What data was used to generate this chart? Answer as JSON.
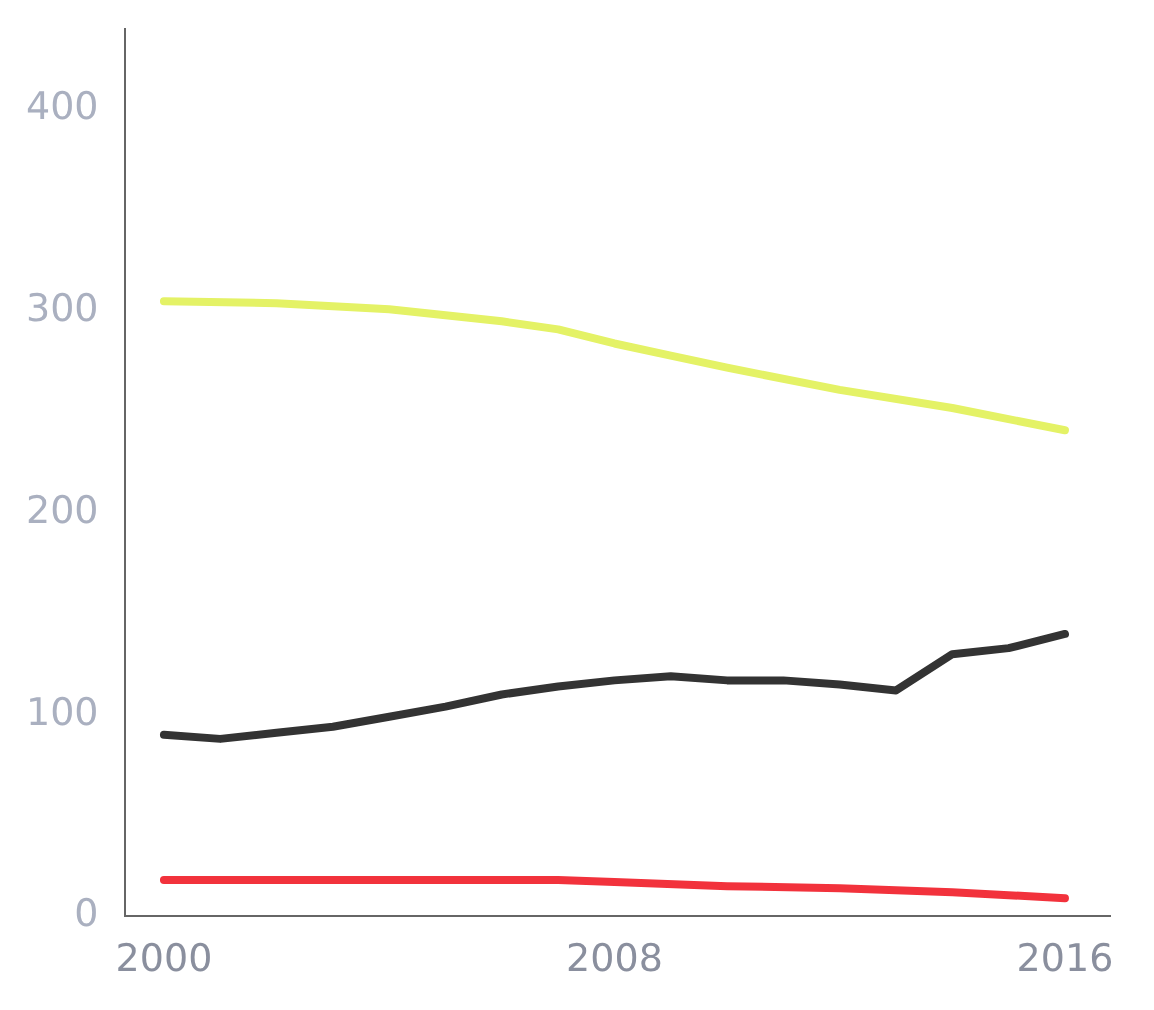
{
  "chart_data": {
    "type": "line",
    "xlim": [
      1999.3,
      2016.8
    ],
    "xticks": [
      2000,
      2008,
      2016
    ],
    "ylim": [
      0,
      440
    ],
    "yticks": [
      0,
      100,
      200,
      300,
      400
    ],
    "grid": false,
    "legend": false,
    "marker": "none",
    "line_style": "solid",
    "series": [
      {
        "color": "#e4f266",
        "x": [
          2000,
          2002,
          2004,
          2006,
          2007,
          2008,
          2009,
          2010,
          2012,
          2014,
          2016
        ],
        "values": [
          305,
          304,
          301,
          295,
          291,
          284,
          278,
          272,
          261,
          252,
          241
        ]
      },
      {
        "color": "#333333",
        "x": [
          2000,
          2001,
          2002,
          2003,
          2004,
          2005,
          2006,
          2007,
          2008,
          2009,
          2010,
          2011,
          2012,
          2013,
          2014,
          2015,
          2016
        ],
        "values": [
          90,
          88,
          91,
          94,
          99,
          104,
          110,
          114,
          117,
          119,
          117,
          117,
          115,
          112,
          130,
          133,
          140
        ]
      },
      {
        "color": "#f2323c",
        "x": [
          2000,
          2004,
          2007,
          2008,
          2010,
          2012,
          2013,
          2014,
          2016
        ],
        "values": [
          18,
          18,
          18,
          17,
          15,
          14,
          13,
          12,
          9
        ]
      }
    ]
  }
}
